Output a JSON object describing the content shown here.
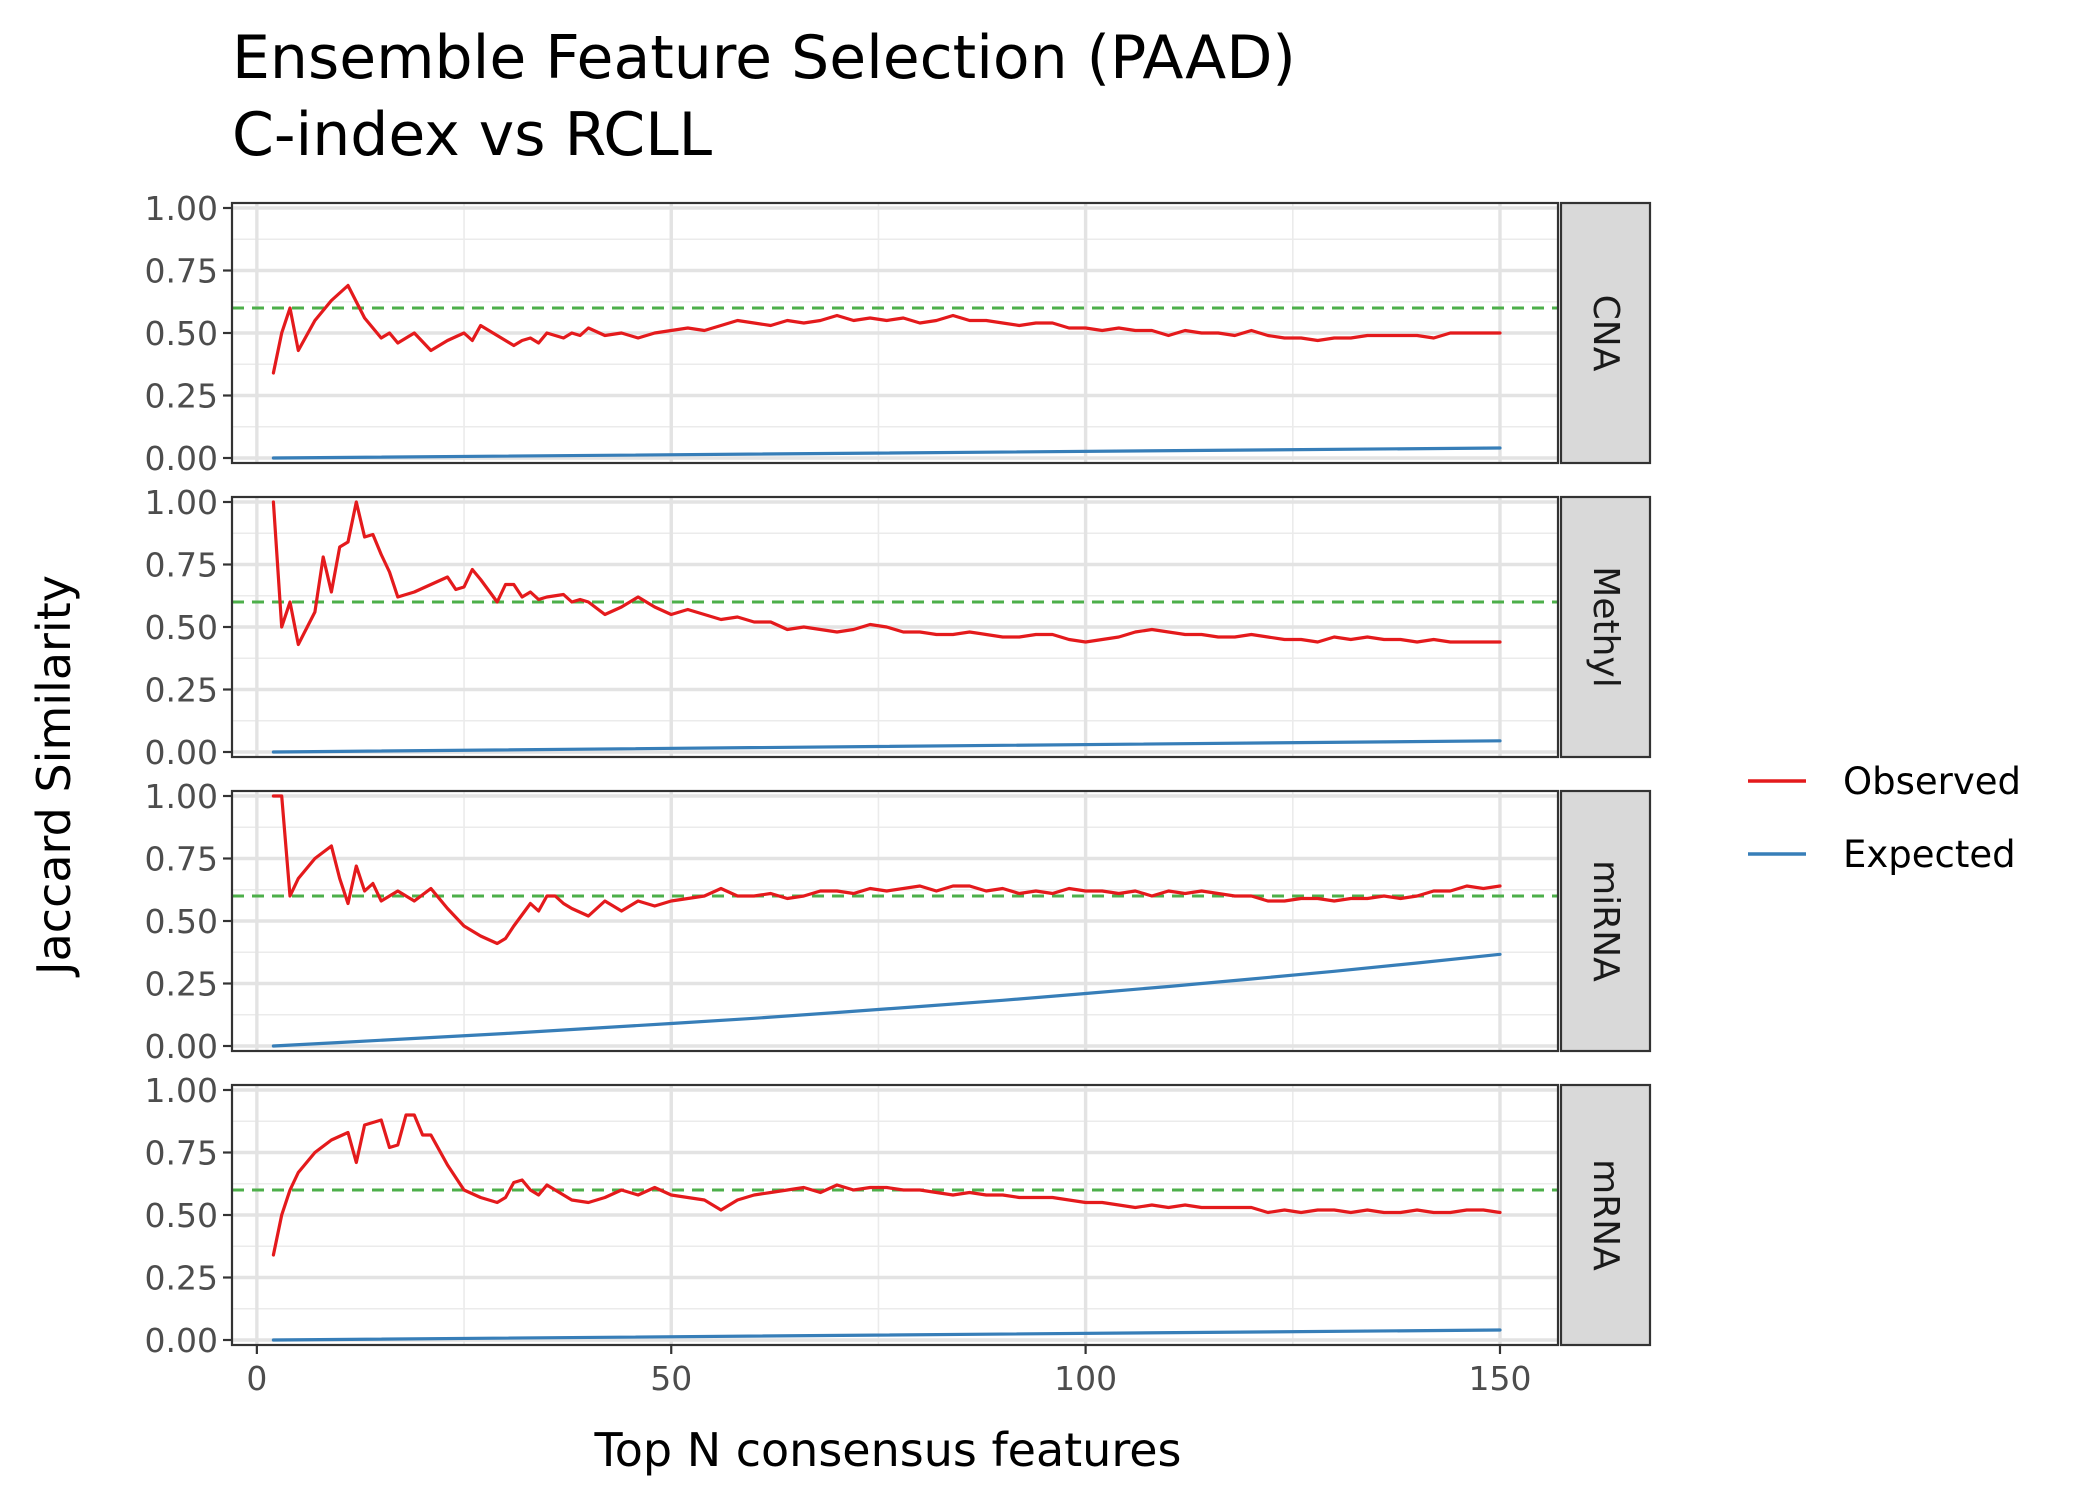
{
  "chart_data": {
    "type": "line",
    "title": "Ensemble Feature Selection (PAAD)",
    "subtitle": "C-index vs RCLL",
    "xlabel": "Top N consensus features",
    "ylabel": "Jaccard Similarity",
    "xlim": [
      -3,
      157
    ],
    "ylim": [
      -0.02,
      1.02
    ],
    "x_ticks": [
      0,
      50,
      100,
      150
    ],
    "x_tick_labels": [
      "0",
      "50",
      "100",
      "150"
    ],
    "y_ticks": [
      0,
      0.25,
      0.5,
      0.75,
      1
    ],
    "y_tick_labels": [
      "0.00",
      "0.25",
      "0.50",
      "0.75",
      "1.00"
    ],
    "reference_line": {
      "y": 0.6,
      "color": "#4daf4a",
      "style": "dashed"
    },
    "legend": {
      "placement": "right",
      "entries": [
        {
          "name": "Observed",
          "color": "#e41a1c"
        },
        {
          "name": "Expected",
          "color": "#377eb8"
        }
      ]
    },
    "grid": true,
    "panels": [
      {
        "label": "CNA",
        "series": [
          {
            "name": "Observed",
            "color": "#e41a1c",
            "x": [
              2,
              3,
              4,
              5,
              7,
              9,
              11,
              13,
              15,
              16,
              17,
              19,
              21,
              23,
              25,
              26,
              27,
              29,
              31,
              32,
              33,
              34,
              35,
              37,
              38,
              39,
              40,
              42,
              44,
              46,
              48,
              50,
              52,
              54,
              56,
              58,
              60,
              62,
              64,
              66,
              68,
              70,
              72,
              74,
              76,
              78,
              80,
              82,
              84,
              86,
              88,
              90,
              92,
              94,
              96,
              98,
              100,
              102,
              104,
              106,
              108,
              110,
              112,
              114,
              116,
              118,
              120,
              122,
              124,
              126,
              128,
              130,
              132,
              134,
              136,
              138,
              140,
              142,
              144,
              146,
              148,
              150
            ],
            "y": [
              0.34,
              0.5,
              0.6,
              0.43,
              0.55,
              0.63,
              0.69,
              0.56,
              0.48,
              0.5,
              0.46,
              0.5,
              0.43,
              0.47,
              0.5,
              0.47,
              0.53,
              0.49,
              0.45,
              0.47,
              0.48,
              0.46,
              0.5,
              0.48,
              0.5,
              0.49,
              0.52,
              0.49,
              0.5,
              0.48,
              0.5,
              0.51,
              0.52,
              0.51,
              0.53,
              0.55,
              0.54,
              0.53,
              0.55,
              0.54,
              0.55,
              0.57,
              0.55,
              0.56,
              0.55,
              0.56,
              0.54,
              0.55,
              0.57,
              0.55,
              0.55,
              0.54,
              0.53,
              0.54,
              0.54,
              0.52,
              0.52,
              0.51,
              0.52,
              0.51,
              0.51,
              0.49,
              0.51,
              0.5,
              0.5,
              0.49,
              0.51,
              0.49,
              0.48,
              0.48,
              0.47,
              0.48,
              0.48,
              0.49,
              0.49,
              0.49,
              0.49,
              0.48,
              0.5,
              0.5,
              0.5,
              0.5
            ]
          },
          {
            "name": "Expected",
            "color": "#377eb8",
            "x": [
              2,
              150
            ],
            "y": [
              0.0,
              0.04
            ]
          }
        ]
      },
      {
        "label": "Methyl",
        "series": [
          {
            "name": "Observed",
            "color": "#e41a1c",
            "x": [
              2,
              3,
              4,
              5,
              7,
              8,
              9,
              10,
              11,
              12,
              13,
              14,
              15,
              16,
              17,
              19,
              21,
              23,
              24,
              25,
              26,
              27,
              29,
              30,
              31,
              32,
              33,
              34,
              35,
              37,
              38,
              39,
              40,
              42,
              44,
              46,
              48,
              50,
              52,
              54,
              56,
              58,
              60,
              62,
              64,
              66,
              68,
              70,
              72,
              74,
              76,
              78,
              80,
              82,
              84,
              86,
              88,
              90,
              92,
              94,
              96,
              98,
              100,
              102,
              104,
              106,
              108,
              110,
              112,
              114,
              116,
              118,
              120,
              122,
              124,
              126,
              128,
              130,
              132,
              134,
              136,
              138,
              140,
              142,
              144,
              146,
              148,
              150
            ],
            "y": [
              1.0,
              0.5,
              0.6,
              0.43,
              0.56,
              0.78,
              0.64,
              0.82,
              0.84,
              1.0,
              0.86,
              0.87,
              0.79,
              0.72,
              0.62,
              0.64,
              0.67,
              0.7,
              0.65,
              0.66,
              0.73,
              0.69,
              0.6,
              0.67,
              0.67,
              0.62,
              0.64,
              0.61,
              0.62,
              0.63,
              0.6,
              0.61,
              0.6,
              0.55,
              0.58,
              0.62,
              0.58,
              0.55,
              0.57,
              0.55,
              0.53,
              0.54,
              0.52,
              0.52,
              0.49,
              0.5,
              0.49,
              0.48,
              0.49,
              0.51,
              0.5,
              0.48,
              0.48,
              0.47,
              0.47,
              0.48,
              0.47,
              0.46,
              0.46,
              0.47,
              0.47,
              0.45,
              0.44,
              0.45,
              0.46,
              0.48,
              0.49,
              0.48,
              0.47,
              0.47,
              0.46,
              0.46,
              0.47,
              0.46,
              0.45,
              0.45,
              0.44,
              0.46,
              0.45,
              0.46,
              0.45,
              0.45,
              0.44,
              0.45,
              0.44,
              0.44,
              0.44,
              0.44
            ]
          },
          {
            "name": "Expected",
            "color": "#377eb8",
            "x": [
              2,
              150
            ],
            "y": [
              0.0,
              0.045
            ]
          }
        ]
      },
      {
        "label": "miRNA",
        "series": [
          {
            "name": "Observed",
            "color": "#e41a1c",
            "x": [
              2,
              3,
              4,
              5,
              7,
              9,
              10,
              11,
              12,
              13,
              14,
              15,
              16,
              17,
              19,
              21,
              23,
              25,
              27,
              29,
              30,
              31,
              33,
              34,
              35,
              36,
              37,
              38,
              40,
              42,
              44,
              46,
              48,
              50,
              52,
              54,
              56,
              58,
              60,
              62,
              64,
              66,
              68,
              70,
              72,
              74,
              76,
              78,
              80,
              82,
              84,
              86,
              88,
              90,
              92,
              94,
              96,
              98,
              100,
              102,
              104,
              106,
              108,
              110,
              112,
              114,
              116,
              118,
              120,
              122,
              124,
              126,
              128,
              130,
              132,
              134,
              136,
              138,
              140,
              142,
              144,
              146,
              148,
              150
            ],
            "y": [
              1.0,
              1.0,
              0.6,
              0.67,
              0.75,
              0.8,
              0.67,
              0.57,
              0.72,
              0.62,
              0.65,
              0.58,
              0.6,
              0.62,
              0.58,
              0.63,
              0.55,
              0.48,
              0.44,
              0.41,
              0.43,
              0.48,
              0.57,
              0.54,
              0.6,
              0.6,
              0.57,
              0.55,
              0.52,
              0.58,
              0.54,
              0.58,
              0.56,
              0.58,
              0.59,
              0.6,
              0.63,
              0.6,
              0.6,
              0.61,
              0.59,
              0.6,
              0.62,
              0.62,
              0.61,
              0.63,
              0.62,
              0.63,
              0.64,
              0.62,
              0.64,
              0.64,
              0.62,
              0.63,
              0.61,
              0.62,
              0.61,
              0.63,
              0.62,
              0.62,
              0.61,
              0.62,
              0.6,
              0.62,
              0.61,
              0.62,
              0.61,
              0.6,
              0.6,
              0.58,
              0.58,
              0.59,
              0.59,
              0.58,
              0.59,
              0.59,
              0.6,
              0.59,
              0.6,
              0.62,
              0.62,
              0.64,
              0.63,
              0.64
            ]
          },
          {
            "name": "Expected",
            "color": "#377eb8",
            "x": [
              2,
              10,
              20,
              30,
              40,
              50,
              60,
              70,
              80,
              90,
              100,
              110,
              120,
              130,
              140,
              150
            ],
            "y": [
              0.0,
              0.014,
              0.032,
              0.05,
              0.07,
              0.09,
              0.111,
              0.134,
              0.158,
              0.183,
              0.21,
              0.238,
              0.268,
              0.299,
              0.332,
              0.367
            ]
          }
        ]
      },
      {
        "label": "mRNA",
        "series": [
          {
            "name": "Observed",
            "color": "#e41a1c",
            "x": [
              2,
              3,
              4,
              5,
              7,
              9,
              11,
              12,
              13,
              15,
              16,
              17,
              18,
              19,
              20,
              21,
              23,
              25,
              27,
              28,
              29,
              30,
              31,
              32,
              33,
              34,
              35,
              36,
              37,
              38,
              40,
              42,
              44,
              46,
              48,
              50,
              52,
              54,
              56,
              58,
              60,
              62,
              64,
              66,
              68,
              70,
              72,
              74,
              76,
              78,
              80,
              82,
              84,
              86,
              88,
              90,
              92,
              94,
              96,
              98,
              100,
              102,
              104,
              106,
              108,
              110,
              112,
              114,
              116,
              118,
              120,
              122,
              124,
              126,
              128,
              130,
              132,
              134,
              136,
              138,
              140,
              142,
              144,
              146,
              148,
              150
            ],
            "y": [
              0.34,
              0.5,
              0.6,
              0.67,
              0.75,
              0.8,
              0.83,
              0.71,
              0.86,
              0.88,
              0.77,
              0.78,
              0.9,
              0.9,
              0.82,
              0.82,
              0.7,
              0.6,
              0.57,
              0.56,
              0.55,
              0.57,
              0.63,
              0.64,
              0.6,
              0.58,
              0.62,
              0.6,
              0.58,
              0.56,
              0.55,
              0.57,
              0.6,
              0.58,
              0.61,
              0.58,
              0.57,
              0.56,
              0.52,
              0.56,
              0.58,
              0.59,
              0.6,
              0.61,
              0.59,
              0.62,
              0.6,
              0.61,
              0.61,
              0.6,
              0.6,
              0.59,
              0.58,
              0.59,
              0.58,
              0.58,
              0.57,
              0.57,
              0.57,
              0.56,
              0.55,
              0.55,
              0.54,
              0.53,
              0.54,
              0.53,
              0.54,
              0.53,
              0.53,
              0.53,
              0.53,
              0.51,
              0.52,
              0.51,
              0.52,
              0.52,
              0.51,
              0.52,
              0.51,
              0.51,
              0.52,
              0.51,
              0.51,
              0.52,
              0.52,
              0.51
            ]
          },
          {
            "name": "Expected",
            "color": "#377eb8",
            "x": [
              2,
              150
            ],
            "y": [
              0.0,
              0.04
            ]
          }
        ]
      }
    ]
  }
}
